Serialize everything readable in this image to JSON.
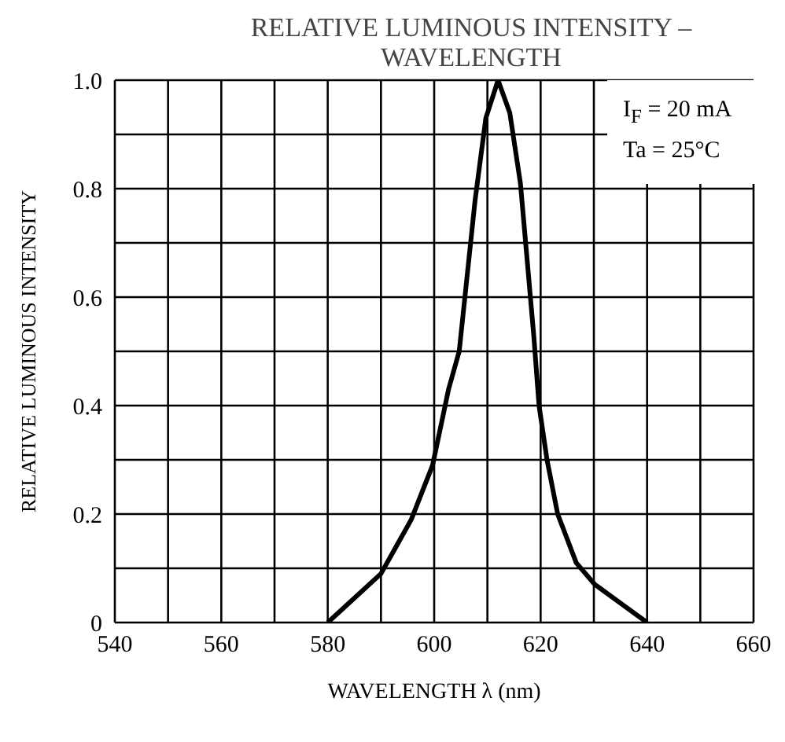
{
  "chart_data": {
    "type": "line",
    "title": "RELATIVE LUMINOUS INTENSITY –\nWAVELENGTH",
    "xlabel": "WAVELENGTH  λ  (nm)",
    "ylabel": "RELATIVE LUMINOUS INTENSITY",
    "annotations": [
      "I$_{F}$ = 20 mA",
      "Ta = 25°C"
    ],
    "x": [
      580,
      590,
      595.7,
      599.7,
      602.7,
      604.7,
      607.7,
      609.7,
      612,
      614.2,
      616.2,
      618.7,
      619.7,
      621.2,
      623.2,
      626.7,
      630.2,
      640
    ],
    "series": [
      {
        "color": "#000000",
        "values": [
          0,
          0.09,
          0.19,
          0.29,
          0.43,
          0.5,
          0.78,
          0.93,
          1.0,
          0.94,
          0.81,
          0.53,
          0.4,
          0.3,
          0.2,
          0.11,
          0.07,
          0
        ]
      }
    ],
    "xlim": [
      540,
      660
    ],
    "xticks": [
      540,
      {
        "value": 550,
        "label": null
      },
      560,
      {
        "value": 570,
        "label": null
      },
      580,
      {
        "value": 590,
        "label": null
      },
      600,
      {
        "value": 610,
        "label": null
      },
      620,
      {
        "value": 630,
        "label": null
      },
      640,
      {
        "value": 650,
        "label": null
      },
      660
    ],
    "ylim": [
      0,
      1.0
    ],
    "yticks": [
      {
        "value": 0,
        "label": "0"
      },
      {
        "value": 0.1,
        "label": null
      },
      {
        "value": 0.2,
        "label": "0.2"
      },
      {
        "value": 0.3,
        "label": null
      },
      {
        "value": 0.4,
        "label": "0.4"
      },
      {
        "value": 0.5,
        "label": null
      },
      {
        "value": 0.6,
        "label": "0.6"
      },
      {
        "value": 0.7,
        "label": null
      },
      {
        "value": 0.8,
        "label": "0.8"
      },
      {
        "value": 0.9,
        "label": null
      },
      {
        "value": 1.0,
        "label": "1.0"
      }
    ],
    "grid": true,
    "line_style": "solid",
    "marker": "none"
  }
}
